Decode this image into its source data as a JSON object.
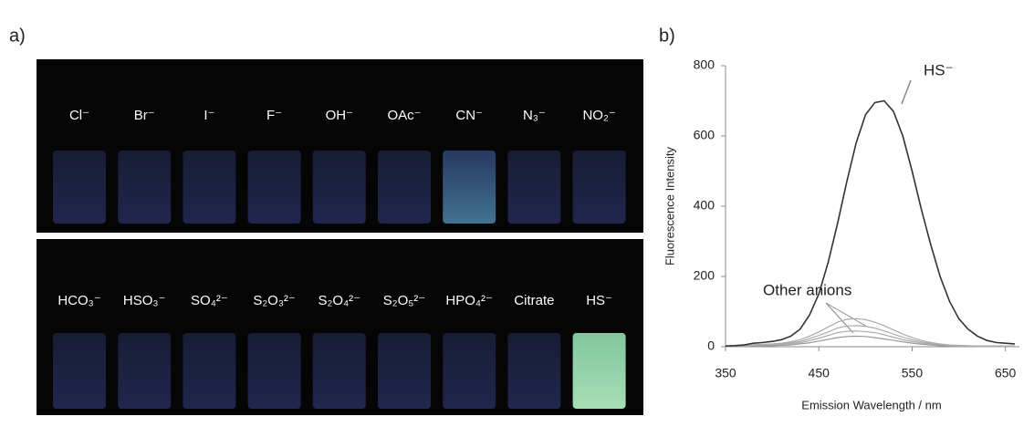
{
  "photo": {
    "panel_label": "a)",
    "top_row": [
      "Cl⁻",
      "Br⁻",
      "I⁻",
      "F⁻",
      "OH⁻",
      "OAc⁻",
      "CN⁻",
      "N₃⁻",
      "NO₂⁻"
    ],
    "bottom_row": [
      "HCO₃⁻",
      "HSO₃⁻",
      "SO₄²⁻",
      "S₂O₃²⁻",
      "S₂O₄²⁻",
      "S₂O₅²⁻",
      "HPO₄²⁻",
      "Citrate",
      "HS⁻"
    ]
  },
  "chart_data": {
    "type": "line",
    "panel_label": "b)",
    "x_label": "Emission Wavelength / nm",
    "y_label": "Fluorescence Intensity",
    "annotations": [
      "HS⁻",
      "Other anions"
    ],
    "xlim": [
      350,
      665
    ],
    "ylim": [
      0,
      800
    ],
    "xticks": [
      350,
      450,
      550,
      650
    ],
    "yticks": [
      0,
      200,
      400,
      600,
      800
    ],
    "x": [
      350,
      360,
      370,
      380,
      390,
      400,
      410,
      420,
      430,
      440,
      450,
      460,
      470,
      480,
      490,
      500,
      510,
      520,
      530,
      540,
      550,
      560,
      570,
      580,
      590,
      600,
      610,
      620,
      630,
      640,
      650,
      660
    ],
    "series": [
      {
        "color": "#333333",
        "values": [
          2,
          3,
          5,
          10,
          12,
          15,
          20,
          30,
          50,
          90,
          150,
          240,
          350,
          470,
          580,
          660,
          695,
          700,
          670,
          600,
          500,
          390,
          290,
          200,
          130,
          80,
          50,
          30,
          18,
          12,
          10,
          8
        ]
      },
      {
        "color": "#aaaaaa",
        "values": [
          2,
          3,
          4,
          6,
          7,
          8,
          10,
          14,
          20,
          30,
          42,
          56,
          70,
          78,
          80,
          77,
          70,
          60,
          48,
          36,
          26,
          18,
          12,
          8,
          5,
          4,
          3,
          2,
          2,
          2,
          2,
          2
        ]
      },
      {
        "color": "#aaaaaa",
        "values": [
          2,
          2,
          3,
          5,
          5,
          6,
          8,
          11,
          15,
          23,
          32,
          42,
          53,
          59,
          60,
          58,
          53,
          45,
          36,
          27,
          20,
          14,
          9,
          6,
          4,
          3,
          2,
          2,
          2,
          2,
          2,
          2
        ]
      },
      {
        "color": "#aaaaaa",
        "values": [
          1,
          2,
          2,
          3,
          4,
          5,
          6,
          8,
          11,
          17,
          24,
          32,
          40,
          44,
          45,
          43,
          40,
          34,
          27,
          20,
          15,
          10,
          7,
          5,
          3,
          2,
          2,
          1,
          1,
          1,
          1,
          1
        ]
      },
      {
        "color": "#999999",
        "values": [
          1,
          1,
          2,
          2,
          3,
          3,
          4,
          5,
          8,
          11,
          16,
          21,
          26,
          29,
          30,
          29,
          26,
          22,
          18,
          14,
          10,
          7,
          5,
          3,
          2,
          2,
          1,
          1,
          1,
          1,
          1,
          1
        ]
      }
    ]
  }
}
